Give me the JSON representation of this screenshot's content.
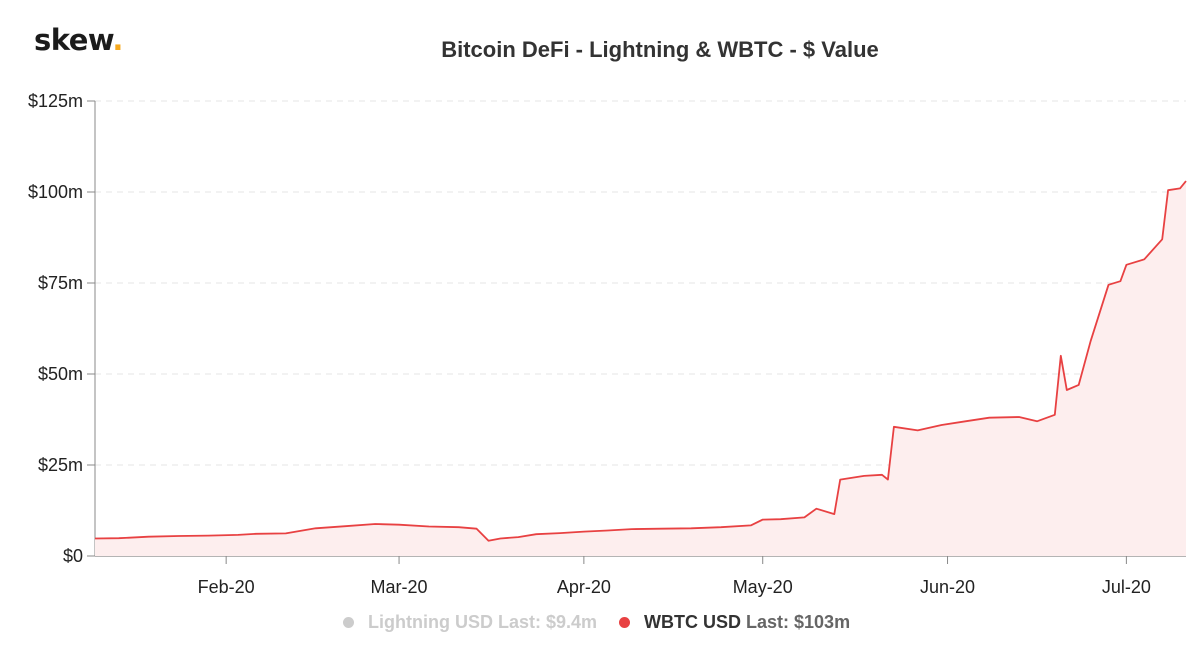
{
  "header": {
    "logo_text": "skew",
    "logo_dot": ".",
    "title": "Bitcoin DeFi - Lightning & WBTC - $ Value"
  },
  "legend": [
    {
      "name": "Lightning USD",
      "last_label": "Last: $9.4m",
      "color": "#cccccc",
      "hidden": true
    },
    {
      "name": "WBTC USD",
      "last_label": "Last: $103m",
      "color": "#e84142",
      "hidden": false
    }
  ],
  "chart_data": {
    "type": "area",
    "title": "Bitcoin DeFi - Lightning & WBTC - $ Value",
    "xlabel": "",
    "ylabel": "",
    "ylim": [
      0,
      125
    ],
    "xlim": [
      "2020-01-10",
      "2020-07-11"
    ],
    "yticks": [
      0,
      25,
      50,
      75,
      100,
      125
    ],
    "ytick_labels": [
      "$0",
      "$25m",
      "$50m",
      "$75m",
      "$100m",
      "$125m"
    ],
    "xticks": [
      "2020-02-01",
      "2020-03-01",
      "2020-04-01",
      "2020-05-01",
      "2020-06-01",
      "2020-07-01"
    ],
    "xtick_labels": [
      "Feb-20",
      "Mar-20",
      "Apr-20",
      "May-20",
      "Jun-20",
      "Jul-20"
    ],
    "grid": "horizontal dashed",
    "legend_position": "bottom-center",
    "series": [
      {
        "name": "WBTC USD",
        "color": "#e84142",
        "fill": "#fdeeee",
        "points": [
          [
            "2020-01-10",
            4.8
          ],
          [
            "2020-01-14",
            4.9
          ],
          [
            "2020-01-19",
            5.3
          ],
          [
            "2020-01-24",
            5.5
          ],
          [
            "2020-01-29",
            5.6
          ],
          [
            "2020-02-03",
            5.8
          ],
          [
            "2020-02-06",
            6.1
          ],
          [
            "2020-02-11",
            6.2
          ],
          [
            "2020-02-16",
            7.6
          ],
          [
            "2020-02-21",
            8.2
          ],
          [
            "2020-02-26",
            8.8
          ],
          [
            "2020-03-01",
            8.6
          ],
          [
            "2020-03-06",
            8.1
          ],
          [
            "2020-03-11",
            7.9
          ],
          [
            "2020-03-14",
            7.5
          ],
          [
            "2020-03-16",
            4.2
          ],
          [
            "2020-03-18",
            4.8
          ],
          [
            "2020-03-21",
            5.2
          ],
          [
            "2020-03-24",
            6.0
          ],
          [
            "2020-03-28",
            6.3
          ],
          [
            "2020-04-01",
            6.7
          ],
          [
            "2020-04-05",
            7.0
          ],
          [
            "2020-04-09",
            7.4
          ],
          [
            "2020-04-14",
            7.5
          ],
          [
            "2020-04-19",
            7.6
          ],
          [
            "2020-04-24",
            7.9
          ],
          [
            "2020-04-29",
            8.4
          ],
          [
            "2020-05-01",
            10.0
          ],
          [
            "2020-05-04",
            10.1
          ],
          [
            "2020-05-08",
            10.6
          ],
          [
            "2020-05-10",
            13.0
          ],
          [
            "2020-05-13",
            11.5
          ],
          [
            "2020-05-14",
            21.0
          ],
          [
            "2020-05-18",
            22.0
          ],
          [
            "2020-05-21",
            22.3
          ],
          [
            "2020-05-22",
            21.0
          ],
          [
            "2020-05-23",
            35.5
          ],
          [
            "2020-05-27",
            34.5
          ],
          [
            "2020-05-31",
            36.0
          ],
          [
            "2020-06-04",
            37.0
          ],
          [
            "2020-06-08",
            38.0
          ],
          [
            "2020-06-13",
            38.2
          ],
          [
            "2020-06-16",
            37.0
          ],
          [
            "2020-06-19",
            38.8
          ],
          [
            "2020-06-20",
            55.0
          ],
          [
            "2020-06-21",
            45.6
          ],
          [
            "2020-06-23",
            47.0
          ],
          [
            "2020-06-25",
            59.0
          ],
          [
            "2020-06-28",
            74.5
          ],
          [
            "2020-06-30",
            75.5
          ],
          [
            "2020-07-01",
            80.0
          ],
          [
            "2020-07-04",
            81.5
          ],
          [
            "2020-07-07",
            87.0
          ],
          [
            "2020-07-08",
            100.5
          ],
          [
            "2020-07-10",
            101.0
          ],
          [
            "2020-07-11",
            103.0
          ]
        ]
      }
    ]
  }
}
